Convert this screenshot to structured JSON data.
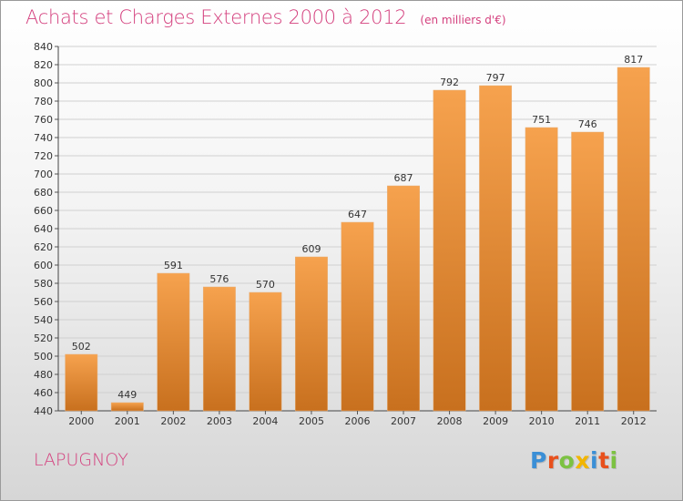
{
  "title": "Achats et Charges Externes 2000 à 2012",
  "subtitle": "(en milliers d'€)",
  "location": "LAPUGNOY",
  "logo_text": "Proxiti",
  "logo_colors": [
    "#3b8fd6",
    "#e8501c",
    "#7cc242",
    "#f2b500",
    "#3b8fd6",
    "#e8501c",
    "#7cc242"
  ],
  "colors": {
    "title": "#d4407e",
    "bar_light": "#f6a24e",
    "bar_dark": "#c8701e",
    "grid": "#d0d0d0"
  },
  "chart_data": {
    "type": "bar",
    "categories": [
      "2000",
      "2001",
      "2002",
      "2003",
      "2004",
      "2005",
      "2006",
      "2007",
      "2008",
      "2009",
      "2010",
      "2011",
      "2012"
    ],
    "values": [
      502,
      449,
      591,
      576,
      570,
      609,
      647,
      687,
      792,
      797,
      751,
      746,
      817
    ],
    "ylim": [
      440,
      840
    ],
    "ytick_step": 20,
    "grid": "horizontal",
    "data_labels": true
  }
}
